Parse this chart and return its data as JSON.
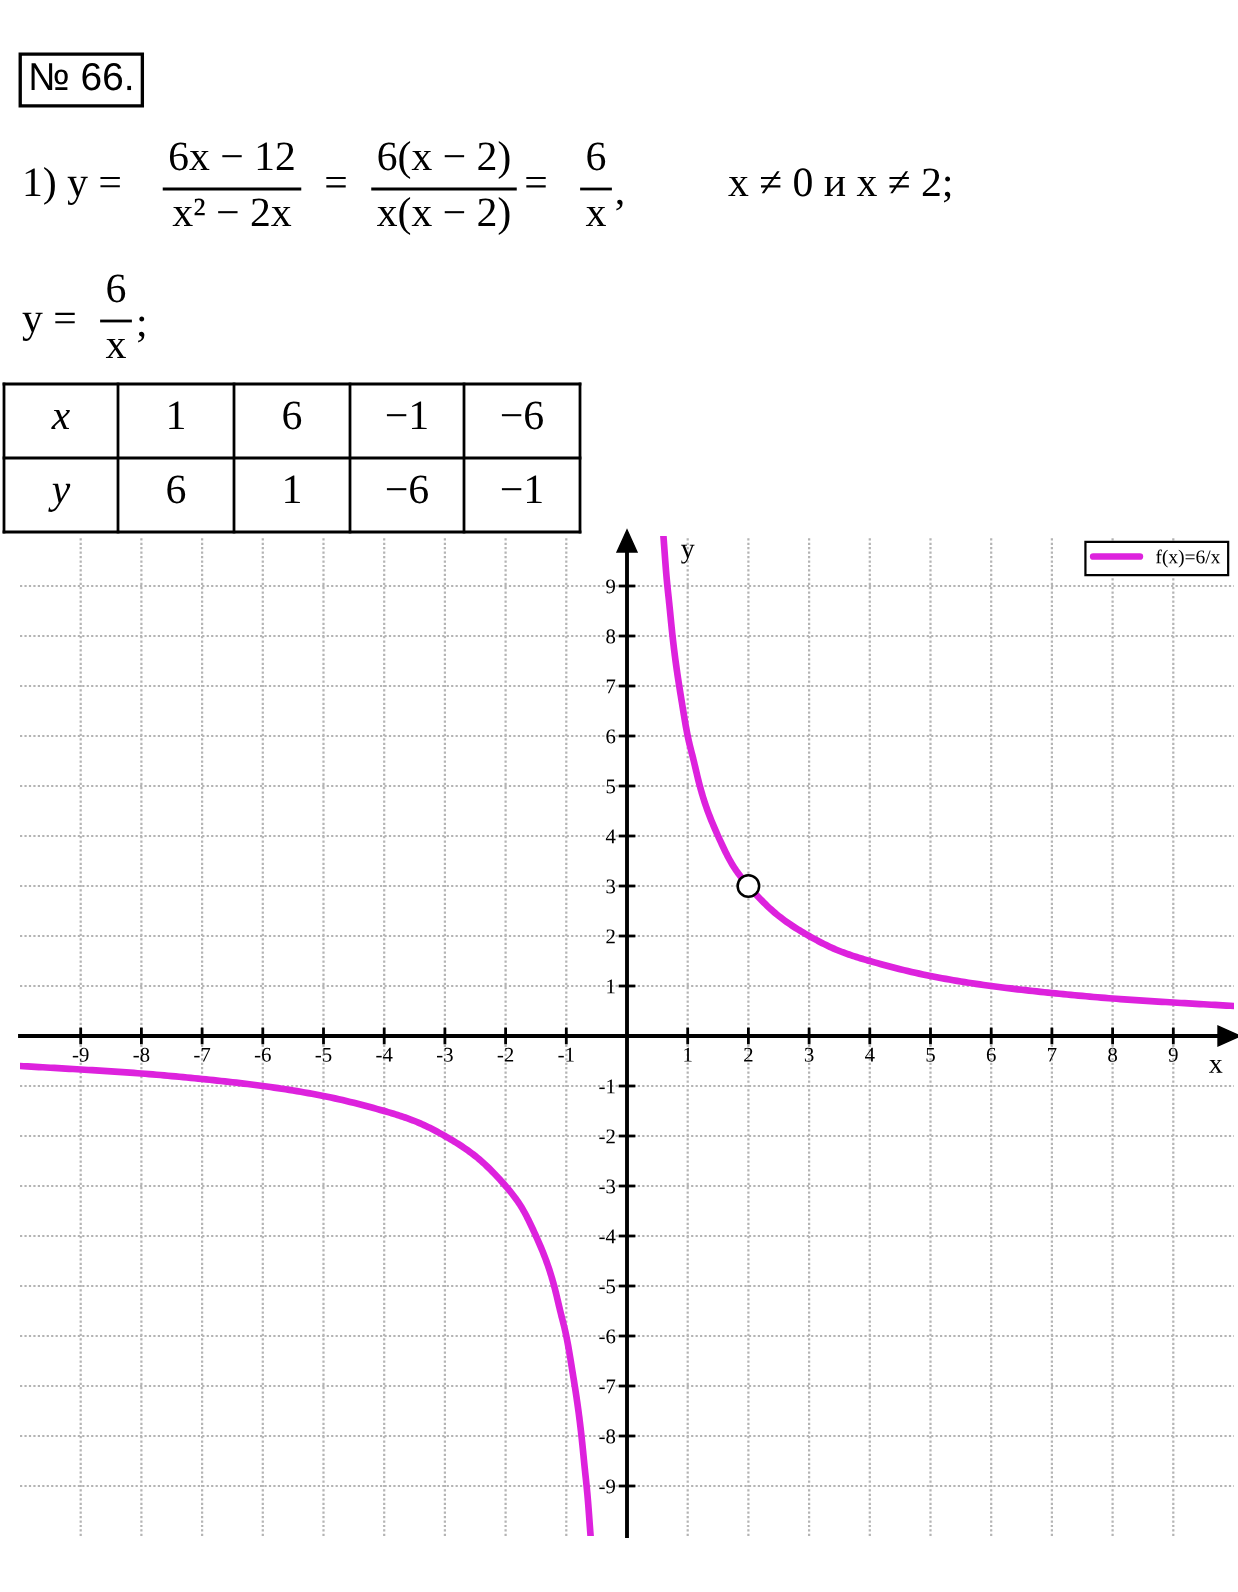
{
  "chart_data": {
    "type": "line",
    "xlabel": "x",
    "ylabel": "y",
    "annotations": [
      "№ 66.",
      "1) y =",
      "6x − 12",
      "x² − 2x",
      "=",
      "6(x − 2)",
      "x(x − 2)",
      "=",
      "6",
      "x",
      ",",
      "x ≠ 0 и x ≠ 2;",
      "y =",
      "6",
      "x",
      ";",
      "x",
      "1",
      "6",
      "−1",
      "−6",
      "y",
      "6",
      "1",
      "−6",
      "−1"
    ],
    "xlim": [
      -10,
      10
    ],
    "ylim": [
      -10,
      10
    ],
    "xticks": [
      -9,
      -8,
      -7,
      -6,
      -5,
      -4,
      -3,
      -2,
      -1,
      1,
      2,
      3,
      4,
      5,
      6,
      7,
      8,
      9
    ],
    "yticks": [
      -9,
      -8,
      -7,
      -6,
      -5,
      -4,
      -3,
      -2,
      -1,
      1,
      2,
      3,
      4,
      5,
      6,
      7,
      8,
      9
    ],
    "grid": true,
    "legend": "top right",
    "series": [
      {
        "name": "f(x)=6/x",
        "color": "#dd22dd",
        "x": [
          0.6,
          0.65,
          0.7,
          0.75,
          0.8,
          0.9,
          1,
          1.1,
          1.2,
          1.3,
          1.5,
          1.75,
          2,
          2.5,
          3,
          3.5,
          4,
          5,
          6,
          7,
          8,
          9,
          10
        ],
        "values": [
          10,
          9.2,
          8.6,
          8,
          7.5,
          6.7,
          6,
          5.5,
          5,
          4.6,
          4,
          3.4,
          3,
          2.4,
          2,
          1.7,
          1.5,
          1.2,
          1,
          0.86,
          0.75,
          0.67,
          0.6
        ]
      },
      {
        "color": "#dd22dd",
        "x": [
          -10,
          -9,
          -8,
          -7,
          -6,
          -5,
          -4,
          -3.5,
          -3,
          -2.5,
          -2,
          -1.75,
          -1.5,
          -1.3,
          -1.2,
          -1.1,
          -1,
          -0.9,
          -0.8,
          -0.75,
          -0.7,
          -0.65,
          -0.6
        ],
        "values": [
          -0.6,
          -0.67,
          -0.75,
          -0.86,
          -1,
          -1.2,
          -1.5,
          -1.7,
          -2,
          -2.4,
          -3,
          -3.4,
          -4,
          -4.6,
          -5,
          -5.5,
          -6,
          -6.7,
          -7.5,
          -8,
          -8.6,
          -9.2,
          -10
        ]
      },
      {
        "type": "scatter",
        "marker": "circle",
        "color": "#ffffff",
        "x": [
          2
        ],
        "values": [
          3
        ]
      }
    ]
  }
}
